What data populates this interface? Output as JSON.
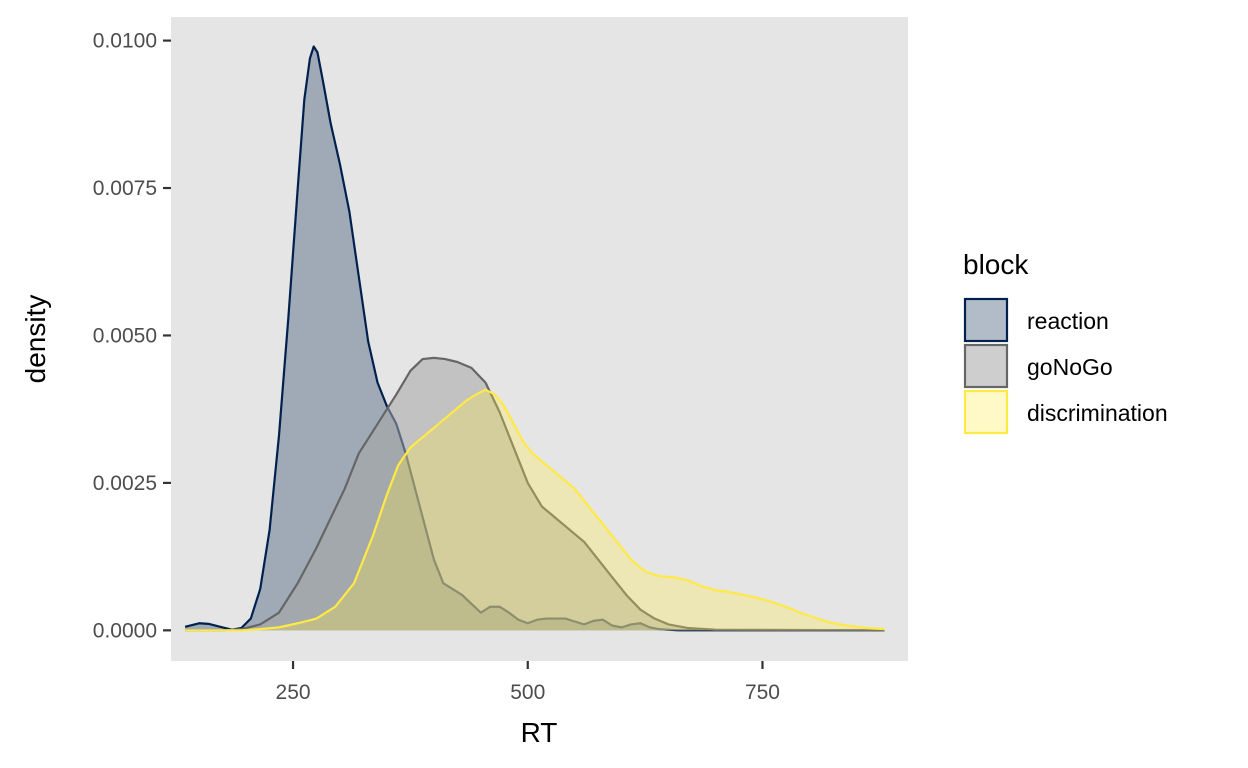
{
  "chart_data": {
    "type": "area",
    "xlabel": "RT",
    "ylabel": "density",
    "xlim": [
      120,
      905
    ],
    "ylim": [
      -0.00052,
      0.0104
    ],
    "x_ticks": [
      {
        "value": 250,
        "label": "250"
      },
      {
        "value": 500,
        "label": "500"
      },
      {
        "value": 750,
        "label": "750"
      }
    ],
    "y_ticks": [
      {
        "value": 0.0,
        "label": "0.0000"
      },
      {
        "value": 0.0025,
        "label": "0.0025"
      },
      {
        "value": 0.005,
        "label": "0.0050"
      },
      {
        "value": 0.0075,
        "label": "0.0075"
      },
      {
        "value": 0.01,
        "label": "0.0100"
      }
    ],
    "grid": false,
    "legend": {
      "title": "block",
      "position": "right"
    },
    "background_color": "#e5e5e5",
    "series": [
      {
        "name": "reaction",
        "line_color": "#00204d",
        "fill_color": "#00204d",
        "fill_opacity": 0.3,
        "points": [
          [
            135,
            6e-05
          ],
          [
            150,
            0.00012
          ],
          [
            160,
            0.00011
          ],
          [
            175,
            5e-05
          ],
          [
            185,
            1e-05
          ],
          [
            195,
            4e-05
          ],
          [
            205,
            0.0002
          ],
          [
            215,
            0.0007
          ],
          [
            225,
            0.0017
          ],
          [
            235,
            0.0033
          ],
          [
            245,
            0.0053
          ],
          [
            255,
            0.0075
          ],
          [
            262,
            0.009
          ],
          [
            268,
            0.0097
          ],
          [
            272,
            0.0099
          ],
          [
            276,
            0.0098
          ],
          [
            282,
            0.0093
          ],
          [
            290,
            0.0086
          ],
          [
            300,
            0.0079
          ],
          [
            310,
            0.0071
          ],
          [
            320,
            0.006
          ],
          [
            330,
            0.0049
          ],
          [
            340,
            0.0042
          ],
          [
            350,
            0.0038
          ],
          [
            360,
            0.0035
          ],
          [
            370,
            0.003
          ],
          [
            380,
            0.0024
          ],
          [
            390,
            0.0018
          ],
          [
            400,
            0.0012
          ],
          [
            410,
            0.0008
          ],
          [
            420,
            0.0007
          ],
          [
            430,
            0.0006
          ],
          [
            440,
            0.00045
          ],
          [
            450,
            0.0003
          ],
          [
            460,
            0.0004
          ],
          [
            470,
            0.0004
          ],
          [
            480,
            0.0003
          ],
          [
            490,
            0.00018
          ],
          [
            500,
            0.00012
          ],
          [
            510,
            0.00018
          ],
          [
            520,
            0.0002
          ],
          [
            530,
            0.0002
          ],
          [
            540,
            0.0002
          ],
          [
            550,
            0.00015
          ],
          [
            560,
            0.0001
          ],
          [
            570,
            0.00016
          ],
          [
            580,
            0.00018
          ],
          [
            590,
            8e-05
          ],
          [
            600,
            5e-05
          ],
          [
            610,
            0.0001
          ],
          [
            620,
            0.00012
          ],
          [
            630,
            5e-05
          ],
          [
            640,
            2e-05
          ],
          [
            660,
            0.0
          ],
          [
            880,
            0.0
          ]
        ]
      },
      {
        "name": "goNoGo",
        "line_color": "#666666",
        "fill_color": "#a6a6a6",
        "fill_opacity": 0.55,
        "points": [
          [
            135,
            0.0
          ],
          [
            175,
            0.0
          ],
          [
            195,
            2e-05
          ],
          [
            215,
            0.0001
          ],
          [
            235,
            0.0003
          ],
          [
            255,
            0.0008
          ],
          [
            275,
            0.0014
          ],
          [
            290,
            0.0019
          ],
          [
            305,
            0.0024
          ],
          [
            320,
            0.003
          ],
          [
            340,
            0.0035
          ],
          [
            360,
            0.004
          ],
          [
            375,
            0.0044
          ],
          [
            388,
            0.0046
          ],
          [
            400,
            0.00462
          ],
          [
            412,
            0.0046
          ],
          [
            425,
            0.00455
          ],
          [
            440,
            0.00445
          ],
          [
            455,
            0.0042
          ],
          [
            470,
            0.0037
          ],
          [
            480,
            0.0033
          ],
          [
            490,
            0.0029
          ],
          [
            500,
            0.0025
          ],
          [
            515,
            0.0021
          ],
          [
            530,
            0.0019
          ],
          [
            545,
            0.0017
          ],
          [
            560,
            0.0015
          ],
          [
            575,
            0.0012
          ],
          [
            590,
            0.0009
          ],
          [
            605,
            0.0006
          ],
          [
            620,
            0.00035
          ],
          [
            635,
            0.0002
          ],
          [
            650,
            0.0001
          ],
          [
            670,
            4e-05
          ],
          [
            700,
            1e-05
          ],
          [
            880,
            0.0
          ]
        ]
      },
      {
        "name": "discrimination",
        "line_color": "#ffe945",
        "fill_color": "#ffe945",
        "fill_opacity": 0.3,
        "points": [
          [
            135,
            0.0
          ],
          [
            195,
            0.0
          ],
          [
            215,
            2e-05
          ],
          [
            235,
            5e-05
          ],
          [
            255,
            0.00012
          ],
          [
            275,
            0.0002
          ],
          [
            295,
            0.0004
          ],
          [
            315,
            0.0008
          ],
          [
            335,
            0.0016
          ],
          [
            350,
            0.0023
          ],
          [
            362,
            0.0028
          ],
          [
            375,
            0.0031
          ],
          [
            390,
            0.0033
          ],
          [
            405,
            0.0035
          ],
          [
            420,
            0.0037
          ],
          [
            435,
            0.0039
          ],
          [
            445,
            0.004
          ],
          [
            455,
            0.00408
          ],
          [
            465,
            0.004
          ],
          [
            475,
            0.0038
          ],
          [
            485,
            0.0035
          ],
          [
            495,
            0.0032
          ],
          [
            505,
            0.003
          ],
          [
            520,
            0.0028
          ],
          [
            535,
            0.0026
          ],
          [
            550,
            0.0024
          ],
          [
            565,
            0.0021
          ],
          [
            580,
            0.0018
          ],
          [
            595,
            0.0015
          ],
          [
            610,
            0.0012
          ],
          [
            625,
            0.001
          ],
          [
            640,
            0.00092
          ],
          [
            655,
            0.0009
          ],
          [
            670,
            0.00085
          ],
          [
            685,
            0.00075
          ],
          [
            700,
            0.00068
          ],
          [
            715,
            0.00065
          ],
          [
            730,
            0.0006
          ],
          [
            745,
            0.00055
          ],
          [
            760,
            0.00048
          ],
          [
            775,
            0.0004
          ],
          [
            790,
            0.0003
          ],
          [
            805,
            0.00022
          ],
          [
            820,
            0.00014
          ],
          [
            840,
            8e-05
          ],
          [
            860,
            4e-05
          ],
          [
            880,
            2e-05
          ]
        ]
      }
    ]
  }
}
